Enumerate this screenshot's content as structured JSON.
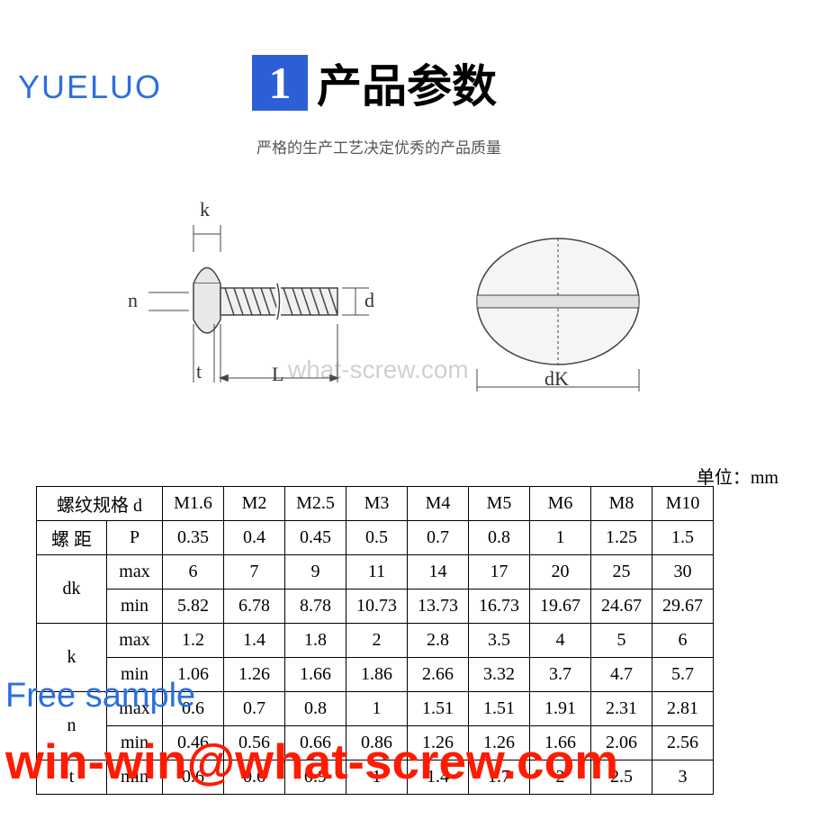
{
  "logo_text": "YUELUO",
  "header": {
    "number": "1",
    "title": "产品参数"
  },
  "subtitle": "严格的生产工艺决定优秀的产品质量",
  "watermark": "what-screw.com",
  "unit_label": "单位：mm",
  "diagram_labels": {
    "k": "k",
    "n": "n",
    "t": "t",
    "L": "L",
    "d": "d",
    "dK": "dK"
  },
  "table": {
    "header_row": {
      "label_d": "螺纹规格   d",
      "sizes": [
        "M1.6",
        "M2",
        "M2.5",
        "M3",
        "M4",
        "M5",
        "M6",
        "M8",
        "M10"
      ]
    },
    "pitch_row": {
      "label": "螺     距",
      "symbol": "P",
      "values": [
        "0.35",
        "0.4",
        "0.45",
        "0.5",
        "0.7",
        "0.8",
        "1",
        "1.25",
        "1.5"
      ]
    },
    "rows": [
      {
        "param": "dk",
        "sub": [
          {
            "label": "max",
            "vals": [
              "6",
              "7",
              "9",
              "11",
              "14",
              "17",
              "20",
              "25",
              "30"
            ]
          },
          {
            "label": "min",
            "vals": [
              "5.82",
              "6.78",
              "8.78",
              "10.73",
              "13.73",
              "16.73",
              "19.67",
              "24.67",
              "29.67"
            ]
          }
        ]
      },
      {
        "param": "k",
        "sub": [
          {
            "label": "max",
            "vals": [
              "1.2",
              "1.4",
              "1.8",
              "2",
              "2.8",
              "3.5",
              "4",
              "5",
              "6"
            ]
          },
          {
            "label": "min",
            "vals": [
              "1.06",
              "1.26",
              "1.66",
              "1.86",
              "2.66",
              "3.32",
              "3.7",
              "4.7",
              "5.7"
            ]
          }
        ]
      },
      {
        "param": "n",
        "sub": [
          {
            "label": "max",
            "vals": [
              "0.6",
              "0.7",
              "0.8",
              "1",
              "1.51",
              "1.51",
              "1.91",
              "2.31",
              "2.81"
            ]
          },
          {
            "label": "min",
            "vals": [
              "0.46",
              "0.56",
              "0.66",
              "0.86",
              "1.26",
              "1.26",
              "1.66",
              "2.06",
              "2.56"
            ]
          }
        ]
      },
      {
        "param": "t",
        "sub": [
          {
            "label": "min",
            "vals": [
              "0.6",
              "0.6",
              "0.9",
              "1",
              "1.4",
              "1.7",
              "2",
              "2.5",
              "3"
            ]
          }
        ]
      }
    ]
  },
  "free_sample": "Free sample",
  "email": "win-win@what-screw.com"
}
